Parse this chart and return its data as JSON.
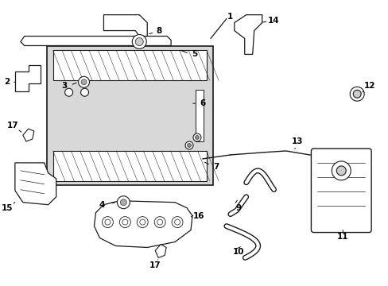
{
  "bg_color": "#ffffff",
  "line_color": "#1a1a1a",
  "fill_light": "#d8d8d8",
  "fig_width": 4.89,
  "fig_height": 3.6,
  "dpi": 100
}
